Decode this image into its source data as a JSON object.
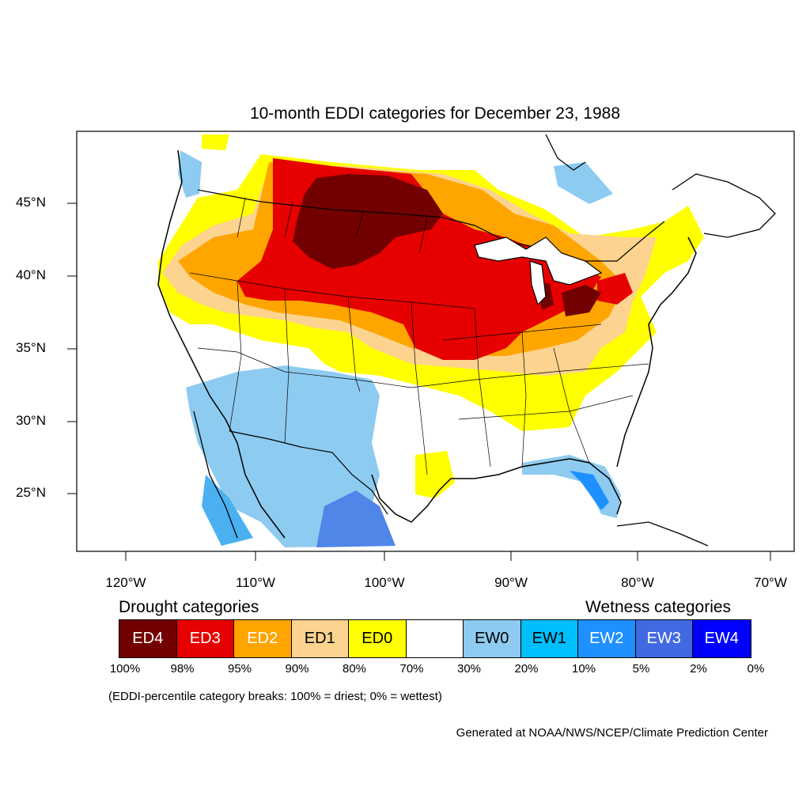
{
  "title": "10-month EDDI categories for December 23, 1988",
  "lat_labels": [
    "45°N",
    "40°N",
    "35°N",
    "30°N",
    "25°N"
  ],
  "lon_labels": [
    "120°W",
    "110°W",
    "100°W",
    "90°W",
    "80°W",
    "70°W"
  ],
  "legend": {
    "drought_heading": "Drought categories",
    "wetness_heading": "Wetness categories",
    "categories": [
      {
        "label": "ED4",
        "color": "#730000",
        "text_color": "#ffffff"
      },
      {
        "label": "ED3",
        "color": "#e60000",
        "text_color": "#ffffff"
      },
      {
        "label": "ED2",
        "color": "#ffa500",
        "text_color": "#ffffff"
      },
      {
        "label": "ED1",
        "color": "#fcd38f",
        "text_color": "#000000"
      },
      {
        "label": "ED0",
        "color": "#ffff00",
        "text_color": "#000000"
      },
      {
        "label": "",
        "color": "#ffffff",
        "text_color": "#000000"
      },
      {
        "label": "EW0",
        "color": "#8ecbf0",
        "text_color": "#000000"
      },
      {
        "label": "EW1",
        "color": "#00bfff",
        "text_color": "#000000"
      },
      {
        "label": "EW2",
        "color": "#1e90ff",
        "text_color": "#ffffff"
      },
      {
        "label": "EW3",
        "color": "#4169e1",
        "text_color": "#ffffff"
      },
      {
        "label": "EW4",
        "color": "#0000ff",
        "text_color": "#ffffff"
      }
    ],
    "breaks": [
      "100%",
      "98%",
      "95%",
      "90%",
      "80%",
      "70%",
      "30%",
      "20%",
      "10%",
      "5%",
      "2%",
      "0%"
    ]
  },
  "note": "(EDDI-percentile category breaks: 100% = driest; 0% = wettest)",
  "credit": "Generated at NOAA/NWS/NCEP/Climate Prediction Center"
}
